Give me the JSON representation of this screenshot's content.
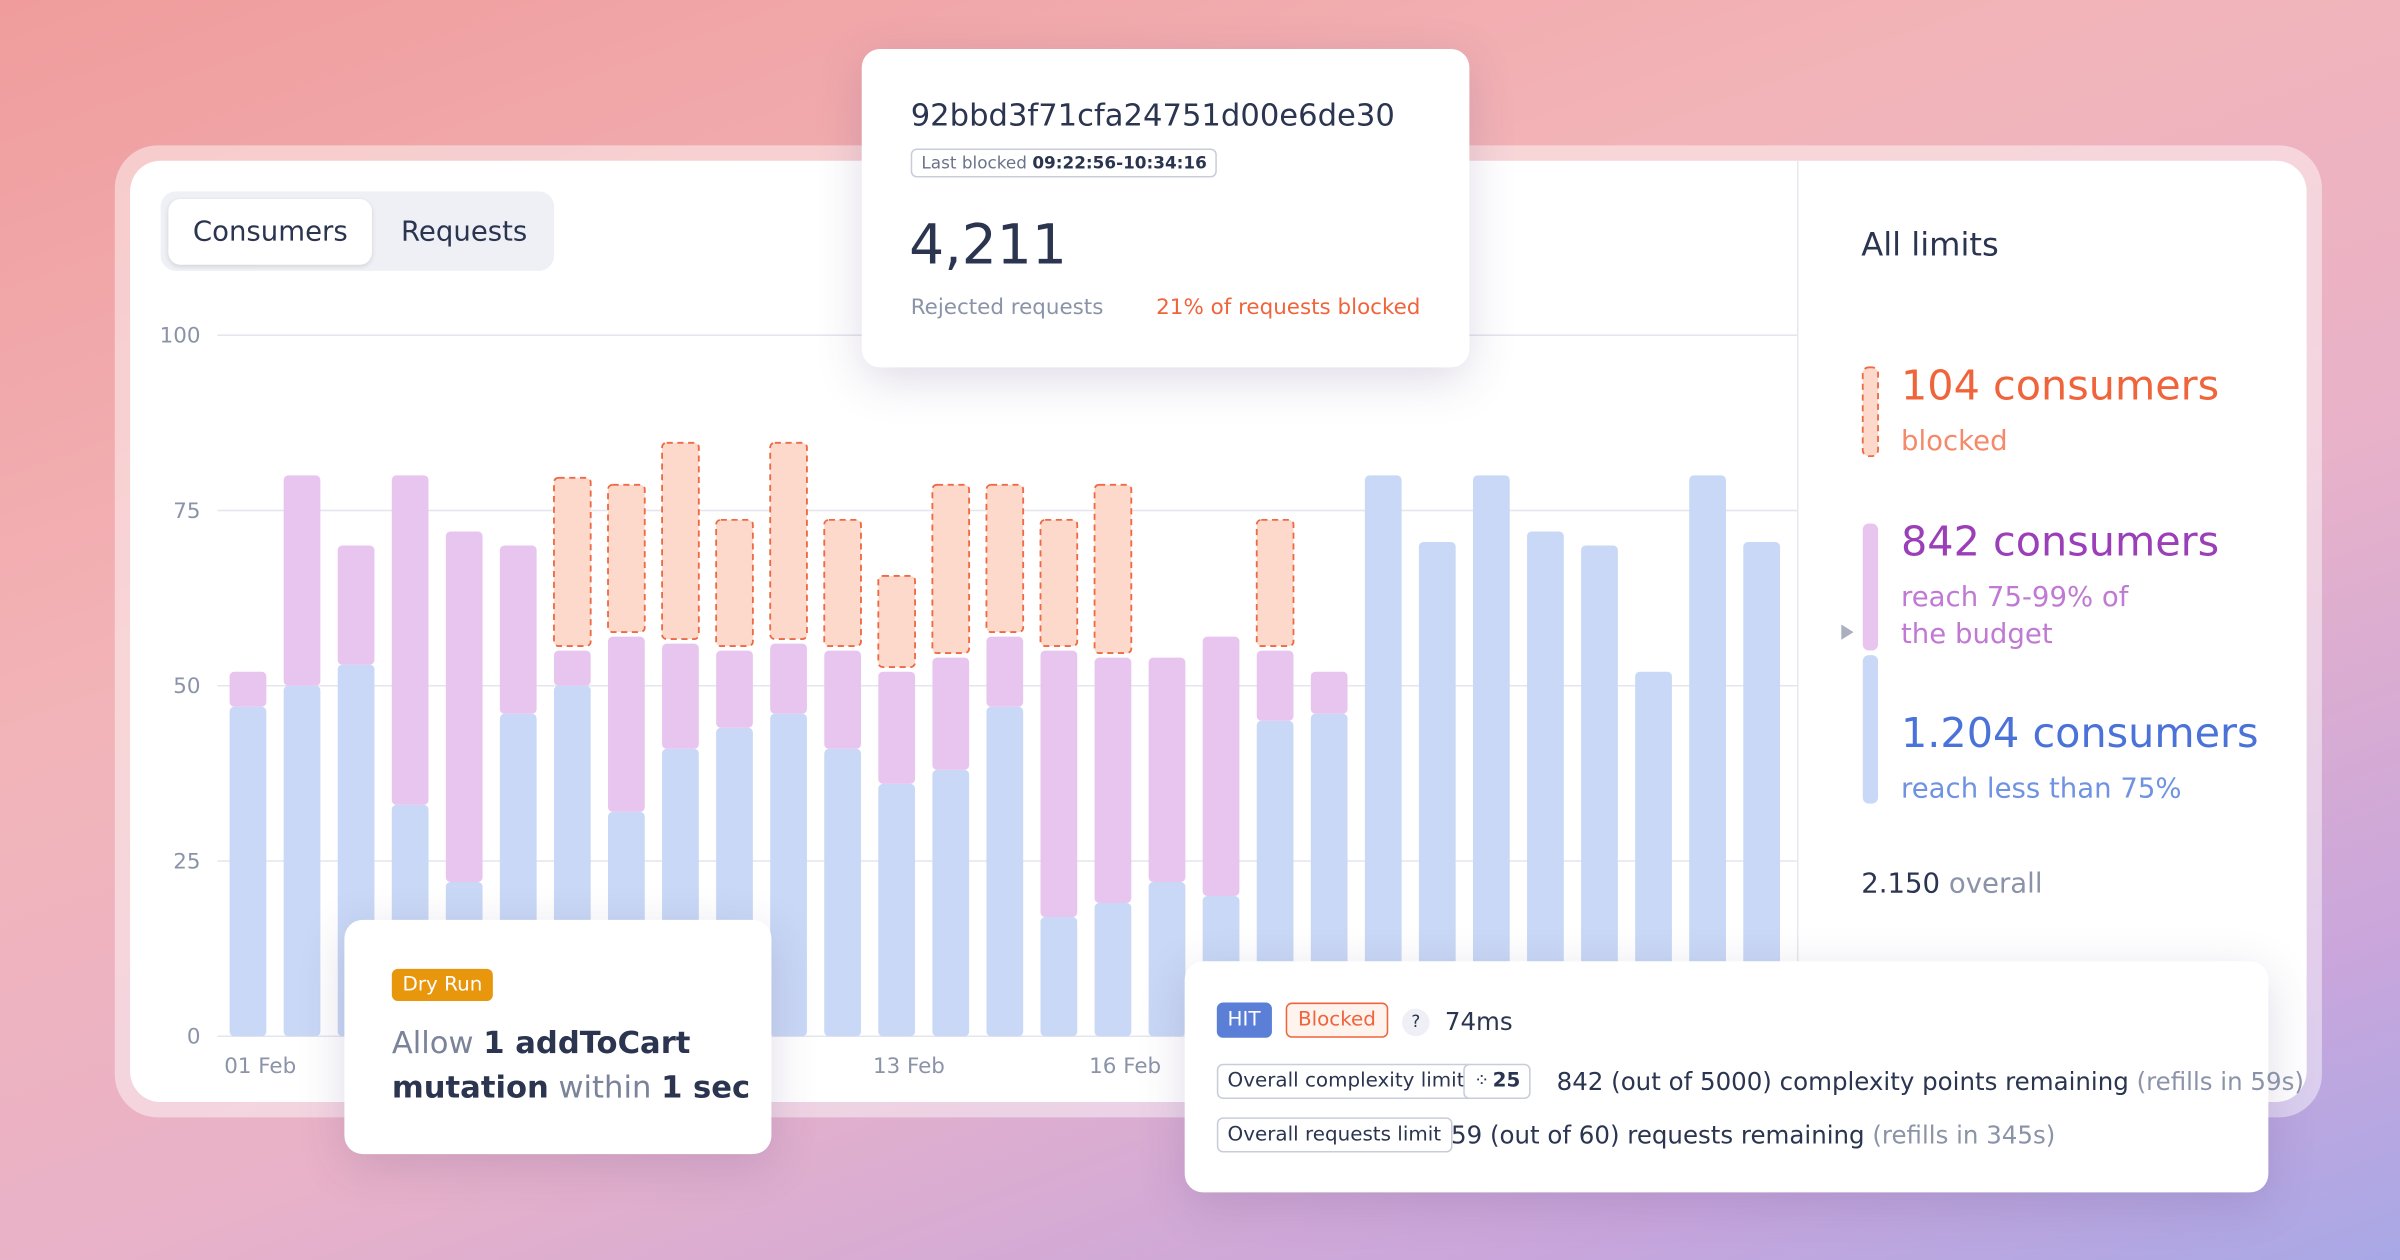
{
  "tabs": [
    "Consumers",
    "Requests"
  ],
  "tooltip": {
    "id": "92bbd3f71cfa24751d00e6de30",
    "last_blocked_label": "Last blocked",
    "last_blocked_time": "09:22:56-10:34:16",
    "count": "4,211",
    "count_label": "Rejected requests",
    "share": "21% of requests blocked"
  },
  "chart_data": {
    "type": "bar",
    "stacked": true,
    "categories": [
      "01 Feb",
      null,
      null,
      null,
      null,
      null,
      null,
      null,
      null,
      null,
      null,
      null,
      "13 Feb",
      null,
      null,
      null,
      "16 Feb",
      null,
      null,
      null,
      null,
      null,
      null,
      null,
      null,
      null,
      null,
      null,
      null
    ],
    "series": [
      {
        "color": "#c9d8f6",
        "values": [
          47,
          50,
          53,
          33,
          22,
          46,
          50,
          32,
          41,
          44,
          46,
          41,
          36,
          38,
          47,
          17,
          19,
          22,
          20,
          45,
          46,
          80,
          70.5,
          80,
          72,
          70,
          52,
          80,
          70.5
        ]
      },
      {
        "color": "#e8c5ef",
        "values": [
          5,
          30,
          17,
          47,
          50,
          24,
          5,
          25,
          15,
          11,
          10,
          14,
          16,
          16,
          10,
          38,
          35,
          32,
          37,
          10,
          6,
          null,
          null,
          null,
          null,
          null,
          null,
          null,
          null
        ]
      },
      {
        "color": "#fdd9cb",
        "stroke": "#ee6a44",
        "dashed": true,
        "values": [
          null,
          null,
          null,
          null,
          null,
          null,
          24,
          21,
          28,
          18,
          28,
          18,
          13,
          24,
          21,
          18,
          24,
          null,
          null,
          18,
          null,
          null,
          null,
          null,
          null,
          null,
          null,
          null,
          null
        ]
      }
    ],
    "ylim": [
      0,
      100
    ],
    "yticks": [
      0,
      25,
      50,
      75,
      100
    ],
    "grid": true
  },
  "summary": {
    "title": "All limits",
    "items": [
      {
        "value": "104 consumers",
        "label": "blocked"
      },
      {
        "value": "842 consumers",
        "label": "reach 75-99% of the budget"
      },
      {
        "value": "1.204 consumers",
        "label": "reach less than 75%"
      }
    ],
    "total": "2.150",
    "total_label": "overall"
  },
  "dry_run": {
    "badge": "Dry Run",
    "line1": [
      "Allow",
      "1 addToCart"
    ],
    "line2": [
      "mutation",
      "within",
      "1 sec"
    ]
  },
  "request": {
    "status": "HIT",
    "result": "Blocked",
    "help": "?",
    "latency": "74ms",
    "limits": [
      {
        "name": "Overall complexity limit",
        "cost": "25",
        "remaining": "842 (out of 5000) complexity points remaining",
        "refill": "(refills in 59s)"
      },
      {
        "name": "Overall requests limit",
        "remaining": "59 (out of 60) requests remaining",
        "refill": "(refills in 345s)"
      }
    ]
  }
}
